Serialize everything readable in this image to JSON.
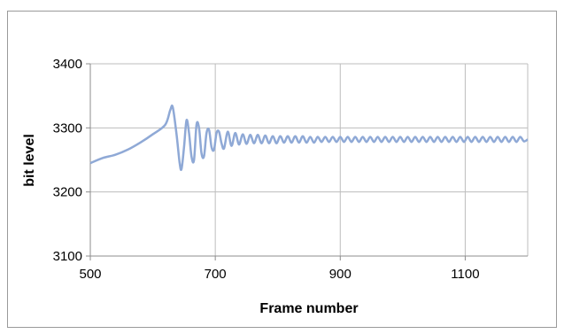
{
  "chart_data": {
    "type": "line",
    "title": "",
    "xlabel": "Frame number",
    "ylabel": "bit level",
    "xlim": [
      500,
      1200
    ],
    "ylim": [
      3100,
      3400
    ],
    "x_ticks": [
      500,
      700,
      900,
      1100
    ],
    "y_ticks": [
      3100,
      3200,
      3300,
      3400
    ],
    "x_tick_labels": [
      "500",
      "700",
      "900",
      "1100"
    ],
    "y_tick_labels": [
      "3100",
      "3200",
      "3300",
      "3400"
    ],
    "grid": "major gridlines on both axes",
    "legend": "none",
    "series": [
      {
        "color": "#8fa9d6",
        "points": [
          [
            500,
            3245
          ],
          [
            520,
            3253
          ],
          [
            540,
            3258
          ],
          [
            560,
            3266
          ],
          [
            580,
            3277
          ],
          [
            600,
            3290
          ],
          [
            620,
            3305
          ],
          [
            628,
            3328
          ],
          [
            632,
            3332
          ],
          [
            638,
            3290
          ],
          [
            643,
            3245
          ],
          [
            646,
            3236
          ],
          [
            650,
            3270
          ],
          [
            654,
            3312
          ],
          [
            658,
            3292
          ],
          [
            662,
            3255
          ],
          [
            666,
            3250
          ],
          [
            670,
            3305
          ],
          [
            674,
            3300
          ],
          [
            678,
            3260
          ],
          [
            682,
            3256
          ],
          [
            686,
            3292
          ],
          [
            690,
            3297
          ],
          [
            694,
            3270
          ],
          [
            698,
            3266
          ],
          [
            702,
            3292
          ],
          [
            706,
            3294
          ],
          [
            710,
            3276
          ],
          [
            714,
            3268
          ],
          [
            720,
            3294
          ],
          [
            726,
            3272
          ],
          [
            732,
            3292
          ],
          [
            738,
            3274
          ],
          [
            744,
            3290
          ],
          [
            750,
            3275
          ],
          [
            756,
            3289
          ],
          [
            762,
            3276
          ],
          [
            768,
            3289
          ],
          [
            774,
            3276
          ],
          [
            780,
            3288
          ],
          [
            786,
            3276
          ],
          [
            792,
            3287
          ],
          [
            798,
            3276
          ],
          [
            804,
            3287
          ],
          [
            810,
            3277
          ],
          [
            816,
            3287
          ],
          [
            822,
            3277
          ],
          [
            828,
            3287
          ],
          [
            834,
            3277
          ],
          [
            840,
            3287
          ],
          [
            846,
            3277
          ],
          [
            852,
            3286
          ],
          [
            858,
            3277
          ],
          [
            864,
            3286
          ],
          [
            870,
            3278
          ],
          [
            876,
            3286
          ],
          [
            882,
            3278
          ],
          [
            888,
            3286
          ],
          [
            894,
            3278
          ],
          [
            900,
            3286
          ],
          [
            906,
            3278
          ],
          [
            912,
            3286
          ],
          [
            918,
            3278
          ],
          [
            924,
            3286
          ],
          [
            930,
            3278
          ],
          [
            936,
            3286
          ],
          [
            942,
            3278
          ],
          [
            948,
            3286
          ],
          [
            954,
            3278
          ],
          [
            960,
            3286
          ],
          [
            966,
            3278
          ],
          [
            972,
            3286
          ],
          [
            978,
            3278
          ],
          [
            984,
            3286
          ],
          [
            990,
            3278
          ],
          [
            996,
            3286
          ],
          [
            1002,
            3278
          ],
          [
            1008,
            3286
          ],
          [
            1014,
            3278
          ],
          [
            1020,
            3286
          ],
          [
            1026,
            3278
          ],
          [
            1032,
            3286
          ],
          [
            1038,
            3278
          ],
          [
            1044,
            3286
          ],
          [
            1050,
            3278
          ],
          [
            1056,
            3286
          ],
          [
            1062,
            3278
          ],
          [
            1068,
            3286
          ],
          [
            1074,
            3278
          ],
          [
            1080,
            3286
          ],
          [
            1086,
            3278
          ],
          [
            1092,
            3286
          ],
          [
            1098,
            3278
          ],
          [
            1104,
            3286
          ],
          [
            1110,
            3278
          ],
          [
            1116,
            3286
          ],
          [
            1122,
            3278
          ],
          [
            1128,
            3286
          ],
          [
            1134,
            3278
          ],
          [
            1140,
            3286
          ],
          [
            1146,
            3278
          ],
          [
            1152,
            3286
          ],
          [
            1158,
            3278
          ],
          [
            1164,
            3286
          ],
          [
            1170,
            3278
          ],
          [
            1176,
            3286
          ],
          [
            1182,
            3278
          ],
          [
            1188,
            3286
          ],
          [
            1194,
            3279
          ],
          [
            1200,
            3282
          ]
        ]
      }
    ]
  }
}
